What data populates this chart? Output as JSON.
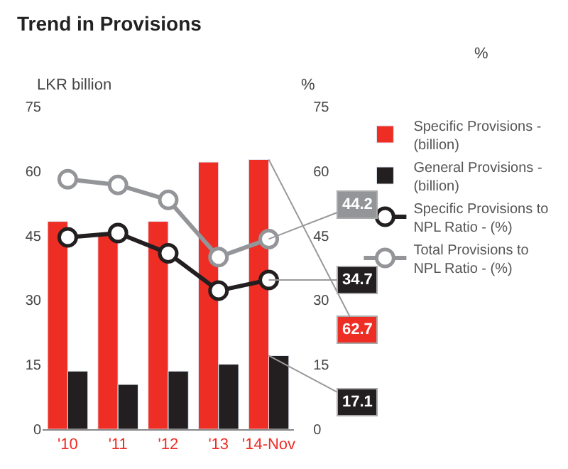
{
  "chart_data": {
    "type": "bar",
    "title": "Trend in Provisions",
    "annotations": [
      "%"
    ],
    "ylabel": "LKR billion",
    "y2label": "%",
    "categories": [
      "'10",
      "'11",
      "'12",
      "'13",
      "'14-Nov"
    ],
    "series": [
      {
        "name": "Specific Provisions - (billion)",
        "color": "#ee2d24",
        "values": [
          48.3,
          45.6,
          48.3,
          62.1,
          62.7
        ],
        "value_labels": [
          null,
          null,
          null,
          null,
          "62.7"
        ]
      },
      {
        "name": "General Provisions - (billion)",
        "color": "#231f20",
        "values": [
          13.5,
          10.4,
          13.5,
          15.1,
          17.1
        ],
        "value_labels": [
          null,
          null,
          null,
          null,
          "17.1"
        ]
      },
      {
        "name": "Specific Provisions to NPL Ratio - (%)",
        "type": "line",
        "axis": "y2",
        "color": "#231f20",
        "values": [
          44.6,
          45.6,
          40.9,
          32.2,
          34.7
        ],
        "value_labels": [
          null,
          null,
          null,
          null,
          "34.7"
        ]
      },
      {
        "name": "Total Provisions to NPL Ratio - (%)",
        "type": "line",
        "axis": "y2",
        "color": "#939598",
        "values": [
          58.1,
          56.8,
          53.3,
          40.0,
          44.2
        ],
        "value_labels": [
          null,
          null,
          null,
          null,
          "44.2"
        ]
      }
    ],
    "ylim": [
      0,
      75
    ],
    "yticks": [
      0,
      15,
      30,
      45,
      60,
      75
    ],
    "y2lim": [
      0,
      75
    ],
    "y2ticks": [
      0,
      15,
      30,
      45,
      60,
      75
    ],
    "marker": "circle",
    "line_style": "solid",
    "legend": "right"
  }
}
